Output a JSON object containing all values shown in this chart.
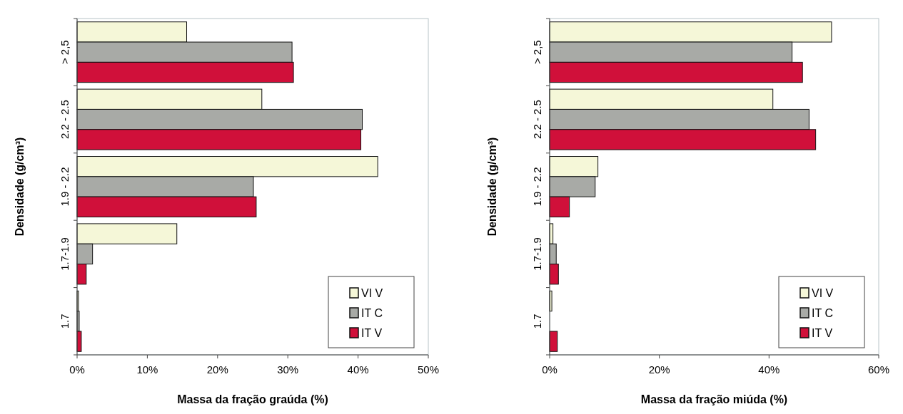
{
  "chart_data": [
    {
      "type": "bar",
      "orientation": "horizontal",
      "xlabel": "Massa da fração graúda (%)",
      "ylabel": "Densidade (g/cm³)",
      "categories": [
        "> 2,5",
        "2.2 - 2.5",
        "1.9 - 2.2",
        "1.7-1.9",
        "1.7"
      ],
      "series": [
        {
          "name": "VI V",
          "color": "#f5f7d8",
          "values": [
            15.6,
            26.3,
            42.8,
            14.2,
            0.2
          ]
        },
        {
          "name": "IT C",
          "color": "#a8aaa6",
          "values": [
            30.6,
            40.6,
            25.1,
            2.2,
            0.3
          ]
        },
        {
          "name": "IT V",
          "color": "#d0103a",
          "values": [
            30.8,
            40.4,
            25.5,
            1.3,
            0.6
          ]
        }
      ],
      "xlim": [
        0,
        50
      ],
      "xticks": [
        {
          "value": 0,
          "label": "0%"
        },
        {
          "value": 10,
          "label": "10%"
        },
        {
          "value": 20,
          "label": "20%"
        },
        {
          "value": 30,
          "label": "30%"
        },
        {
          "value": 40,
          "label": "40%"
        },
        {
          "value": 50,
          "label": "50%"
        }
      ],
      "legend": "bottom right",
      "grid": false
    },
    {
      "type": "bar",
      "orientation": "horizontal",
      "xlabel": "Massa da fração miúda (%)",
      "ylabel": "Densidade (g/cm³)",
      "categories": [
        "> 2,5",
        "2.2 - 2.5",
        "1.9 - 2.2",
        "1.7-1.9",
        "1.7"
      ],
      "series": [
        {
          "name": "VI V",
          "color": "#f5f7d8",
          "values": [
            51.4,
            40.7,
            8.8,
            0.6,
            0.4
          ]
        },
        {
          "name": "IT C",
          "color": "#a8aaa6",
          "values": [
            44.2,
            47.3,
            8.3,
            1.2,
            0
          ]
        },
        {
          "name": "IT V",
          "color": "#d0103a",
          "values": [
            46.1,
            48.5,
            3.6,
            1.6,
            1.4
          ]
        }
      ],
      "xlim": [
        0,
        60
      ],
      "xticks": [
        {
          "value": 0,
          "label": "0%"
        },
        {
          "value": 20,
          "label": "20%"
        },
        {
          "value": 40,
          "label": "40%"
        },
        {
          "value": 60,
          "label": "60%"
        }
      ],
      "legend": "bottom right",
      "grid": false
    }
  ]
}
